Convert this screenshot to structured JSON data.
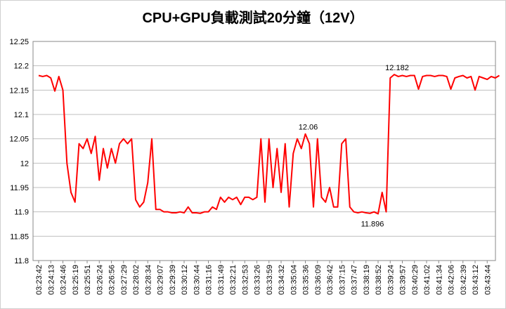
{
  "chart_data": {
    "type": "line",
    "title": "CPU+GPU負載測試20分鐘（12V）",
    "categories": [
      "03:23:42",
      null,
      null,
      "03:24:13",
      null,
      null,
      "03:24:46",
      null,
      null,
      "03:25:19",
      null,
      null,
      "03:25:51",
      null,
      null,
      "03:26:24",
      null,
      null,
      "03:26:56",
      null,
      null,
      "03:27:29",
      null,
      null,
      "03:28:02",
      null,
      null,
      "03:28:34",
      null,
      null,
      "03:29:07",
      null,
      null,
      "03:29:39",
      null,
      null,
      "03:30:12",
      null,
      null,
      "03:30:44",
      null,
      null,
      "03:31:16",
      null,
      null,
      "03:31:49",
      null,
      null,
      "03:32:21",
      null,
      null,
      "03:32:53",
      null,
      null,
      "03:33:26",
      null,
      null,
      "03:33:59",
      null,
      null,
      "03:34:32",
      null,
      null,
      "03:35:04",
      null,
      null,
      "03:35:36",
      null,
      null,
      "03:36:09",
      null,
      null,
      "03:36:42",
      null,
      null,
      "03:37:15",
      null,
      null,
      "03:37:47",
      null,
      null,
      "03:38:19",
      null,
      null,
      "03:38:52",
      null,
      null,
      "03:39:24",
      null,
      null,
      "03:39:57",
      null,
      null,
      "03:40:29",
      null,
      null,
      "03:41:02",
      null,
      null,
      "03:41:34",
      null,
      null,
      "03:42:06",
      null,
      null,
      "03:42:39",
      null,
      null,
      "03:43:12",
      null,
      null,
      "03:43:44",
      null,
      null,
      null
    ],
    "series": [
      {
        "name": "12V",
        "color": "#ff0000",
        "values": [
          12.18,
          12.178,
          12.18,
          12.175,
          12.148,
          12.178,
          12.15,
          12.0,
          11.94,
          11.92,
          12.04,
          12.03,
          12.05,
          12.02,
          12.055,
          11.965,
          12.03,
          11.99,
          12.03,
          12.0,
          12.04,
          12.05,
          12.04,
          12.05,
          11.925,
          11.91,
          11.92,
          11.96,
          12.05,
          11.905,
          11.905,
          11.9,
          11.9,
          11.898,
          11.898,
          11.9,
          11.898,
          11.91,
          11.898,
          11.898,
          11.897,
          11.9,
          11.9,
          11.91,
          11.905,
          11.93,
          11.92,
          11.93,
          11.925,
          11.93,
          11.915,
          11.93,
          11.93,
          11.925,
          11.93,
          12.05,
          11.92,
          12.05,
          11.95,
          12.03,
          11.94,
          12.04,
          11.91,
          12.02,
          12.05,
          12.03,
          12.06,
          12.04,
          11.91,
          12.05,
          11.93,
          11.92,
          11.95,
          11.91,
          11.91,
          12.04,
          12.05,
          11.91,
          11.9,
          11.898,
          11.9,
          11.898,
          11.897,
          11.9,
          11.896,
          11.94,
          11.9,
          12.175,
          12.182,
          12.178,
          12.18,
          12.178,
          12.18,
          12.18,
          12.152,
          12.178,
          12.18,
          12.18,
          12.178,
          12.18,
          12.18,
          12.178,
          12.152,
          12.175,
          12.178,
          12.18,
          12.175,
          12.178,
          12.15,
          12.178,
          12.175,
          12.172,
          12.178,
          12.175,
          12.18
        ]
      }
    ],
    "labeled_points": [
      88,
      66,
      84
    ],
    "ylim": [
      11.8,
      12.25
    ],
    "yticks": [
      11.8,
      11.85,
      11.9,
      11.95,
      12,
      12.05,
      12.1,
      12.15,
      12.2,
      12.25
    ],
    "grid": true
  }
}
